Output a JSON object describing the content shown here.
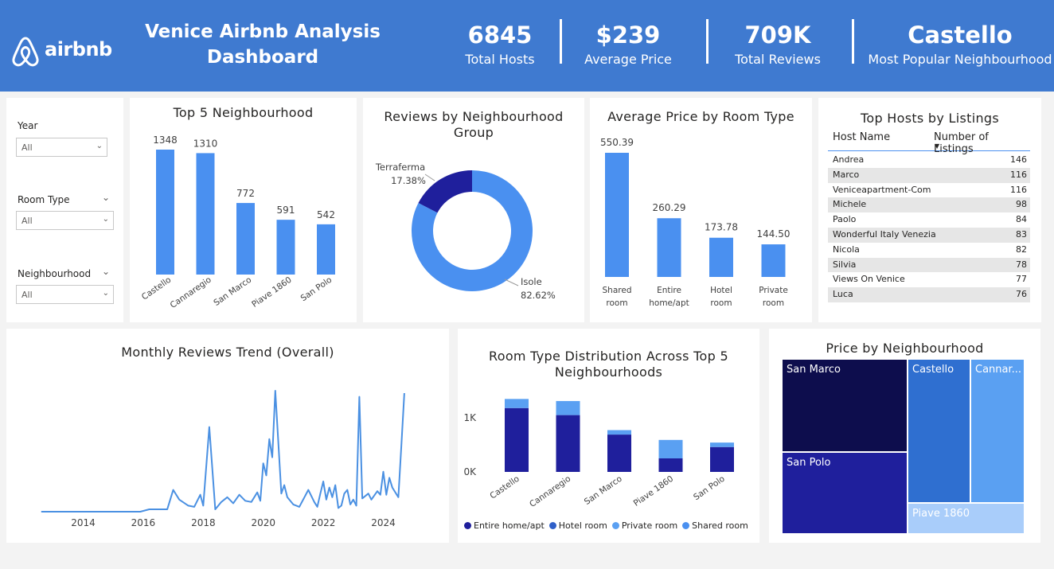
{
  "header": {
    "logo_text": "airbnb",
    "title_line1": "Venice Airbnb Analysis",
    "title_line2": "Dashboard",
    "kpis": [
      {
        "value": "6845",
        "label": "Total Hosts"
      },
      {
        "value": "$239",
        "label": "Average Price"
      },
      {
        "value": "709K",
        "label": "Total Reviews"
      },
      {
        "value": "Castello",
        "label": "Most Popular Neighbourhood"
      }
    ]
  },
  "slicers": [
    {
      "label": "Year",
      "value": "All"
    },
    {
      "label": "Room Type",
      "value": "All"
    },
    {
      "label": "Neighbourhood",
      "value": "All"
    }
  ],
  "colors": {
    "primary": "#4a90f0",
    "dark_navy": "#1f1f9c",
    "header": "#3f7ad0"
  },
  "chart_data": [
    {
      "id": "top5",
      "type": "bar",
      "title": "Top 5 Neighbourhood",
      "categories": [
        "Castello",
        "Cannaregio",
        "San Marco",
        "Piave 1860",
        "San Polo"
      ],
      "values": [
        1348,
        1310,
        772,
        591,
        542
      ],
      "labels": [
        "1348",
        "1310",
        "772",
        "591",
        "542"
      ],
      "ylim": [
        0,
        1400
      ]
    },
    {
      "id": "donut",
      "type": "pie",
      "title": "Reviews by Neighbourhood Group",
      "slices": [
        {
          "name": "Isole",
          "value": 82.62,
          "label": "82.62%",
          "color": "#4a90f0"
        },
        {
          "name": "Terraferma",
          "value": 17.38,
          "label": "17.38%",
          "color": "#1f1f9c"
        }
      ]
    },
    {
      "id": "avgprice",
      "type": "bar",
      "title": "Average Price by Room Type",
      "categories": [
        [
          "Shared",
          "room"
        ],
        [
          "Entire",
          "home/apt"
        ],
        [
          "Hotel",
          "room"
        ],
        [
          "Private",
          "room"
        ]
      ],
      "values": [
        550.39,
        260.29,
        173.78,
        144.5
      ],
      "labels": [
        "550.39",
        "260.29",
        "173.78",
        "144.50"
      ],
      "ylim": [
        0,
        560
      ]
    },
    {
      "id": "trend",
      "type": "line",
      "title": "Monthly Reviews Trend (Overall)",
      "x_ticks": [
        "2014",
        "2016",
        "2018",
        "2020",
        "2022",
        "2024"
      ],
      "xlim": [
        2012.5,
        2025.1
      ],
      "ylim": [
        0,
        100
      ],
      "x": [
        2012.6,
        2014.0,
        2015.0,
        2015.9,
        2016.2,
        2016.8,
        2017.0,
        2017.2,
        2017.5,
        2017.7,
        2017.9,
        2018.0,
        2018.2,
        2018.4,
        2018.6,
        2018.8,
        2019.0,
        2019.2,
        2019.4,
        2019.6,
        2019.8,
        2019.9,
        2020.0,
        2020.1,
        2020.2,
        2020.3,
        2020.4,
        2020.6,
        2020.7,
        2020.8,
        2021.0,
        2021.2,
        2021.5,
        2021.7,
        2021.8,
        2021.9,
        2022.0,
        2022.1,
        2022.2,
        2022.3,
        2022.4,
        2022.5,
        2022.6,
        2022.7,
        2022.8,
        2022.9,
        2023.0,
        2023.1,
        2023.2,
        2023.3,
        2023.5,
        2023.6,
        2023.8,
        2023.9,
        2024.0,
        2024.1,
        2024.2,
        2024.3,
        2024.5,
        2024.6,
        2024.7
      ],
      "y": [
        0,
        0,
        0,
        0,
        2,
        2,
        18,
        10,
        5,
        4,
        14,
        5,
        70,
        2,
        8,
        12,
        7,
        14,
        9,
        8,
        16,
        9,
        40,
        30,
        60,
        45,
        100,
        15,
        22,
        12,
        6,
        4,
        18,
        8,
        4,
        15,
        25,
        10,
        20,
        12,
        22,
        3,
        5,
        15,
        18,
        6,
        10,
        5,
        95,
        11,
        15,
        10,
        17,
        14,
        33,
        14,
        28,
        20,
        12,
        55,
        98
      ]
    },
    {
      "id": "stacked",
      "type": "bar",
      "title": "Room Type Distribution Across Top 5 Neighbourhoods",
      "categories": [
        "Castello",
        "Cannaregio",
        "San Marco",
        "Piave 1860",
        "San Polo"
      ],
      "y_ticks": [
        {
          "value": 0,
          "label": "0K"
        },
        {
          "value": 1000,
          "label": "1K"
        }
      ],
      "ylim": [
        0,
        1400
      ],
      "series": [
        {
          "name": "Entire home/apt",
          "color": "#1f1f9c",
          "values": [
            1180,
            1050,
            690,
            250,
            460
          ]
        },
        {
          "name": "Hotel room",
          "color": "#2f5fc8",
          "values": [
            0,
            0,
            0,
            0,
            0
          ]
        },
        {
          "name": "Private room",
          "color": "#5aa0f2",
          "values": [
            168,
            260,
            82,
            341,
            82
          ]
        },
        {
          "name": "Shared room",
          "color": "#4a90f0",
          "values": [
            0,
            0,
            0,
            0,
            0
          ]
        }
      ]
    },
    {
      "id": "treemap",
      "type": "heatmap",
      "title": "Price by Neighbourhood",
      "cells": [
        {
          "name": "San Marco",
          "label": "San Marco",
          "color": "#0d0d4d"
        },
        {
          "name": "San Polo",
          "label": "San Polo",
          "color": "#1f1f9c"
        },
        {
          "name": "Castello",
          "label": "Castello",
          "color": "#2f6fd0"
        },
        {
          "name": "Cannaregio",
          "label": "Cannar...",
          "color": "#5aa0f2"
        },
        {
          "name": "Piave 1860",
          "label": "Piave 1860",
          "color": "#a9cdfa"
        }
      ]
    }
  ],
  "top_hosts": {
    "title": "Top Hosts by Listings",
    "col_name": "Host Name",
    "col_count": "Number of Listings",
    "rows": [
      {
        "name": "Andrea",
        "count": "146"
      },
      {
        "name": "Marco",
        "count": "116"
      },
      {
        "name": "Veniceapartment-Com",
        "count": "116"
      },
      {
        "name": "Michele",
        "count": "98"
      },
      {
        "name": "Paolo",
        "count": "84"
      },
      {
        "name": "Wonderful Italy Venezia",
        "count": "83"
      },
      {
        "name": "Nicola",
        "count": "82"
      },
      {
        "name": "Silvia",
        "count": "78"
      },
      {
        "name": "Views On Venice",
        "count": "77"
      },
      {
        "name": "Luca",
        "count": "76"
      }
    ]
  }
}
